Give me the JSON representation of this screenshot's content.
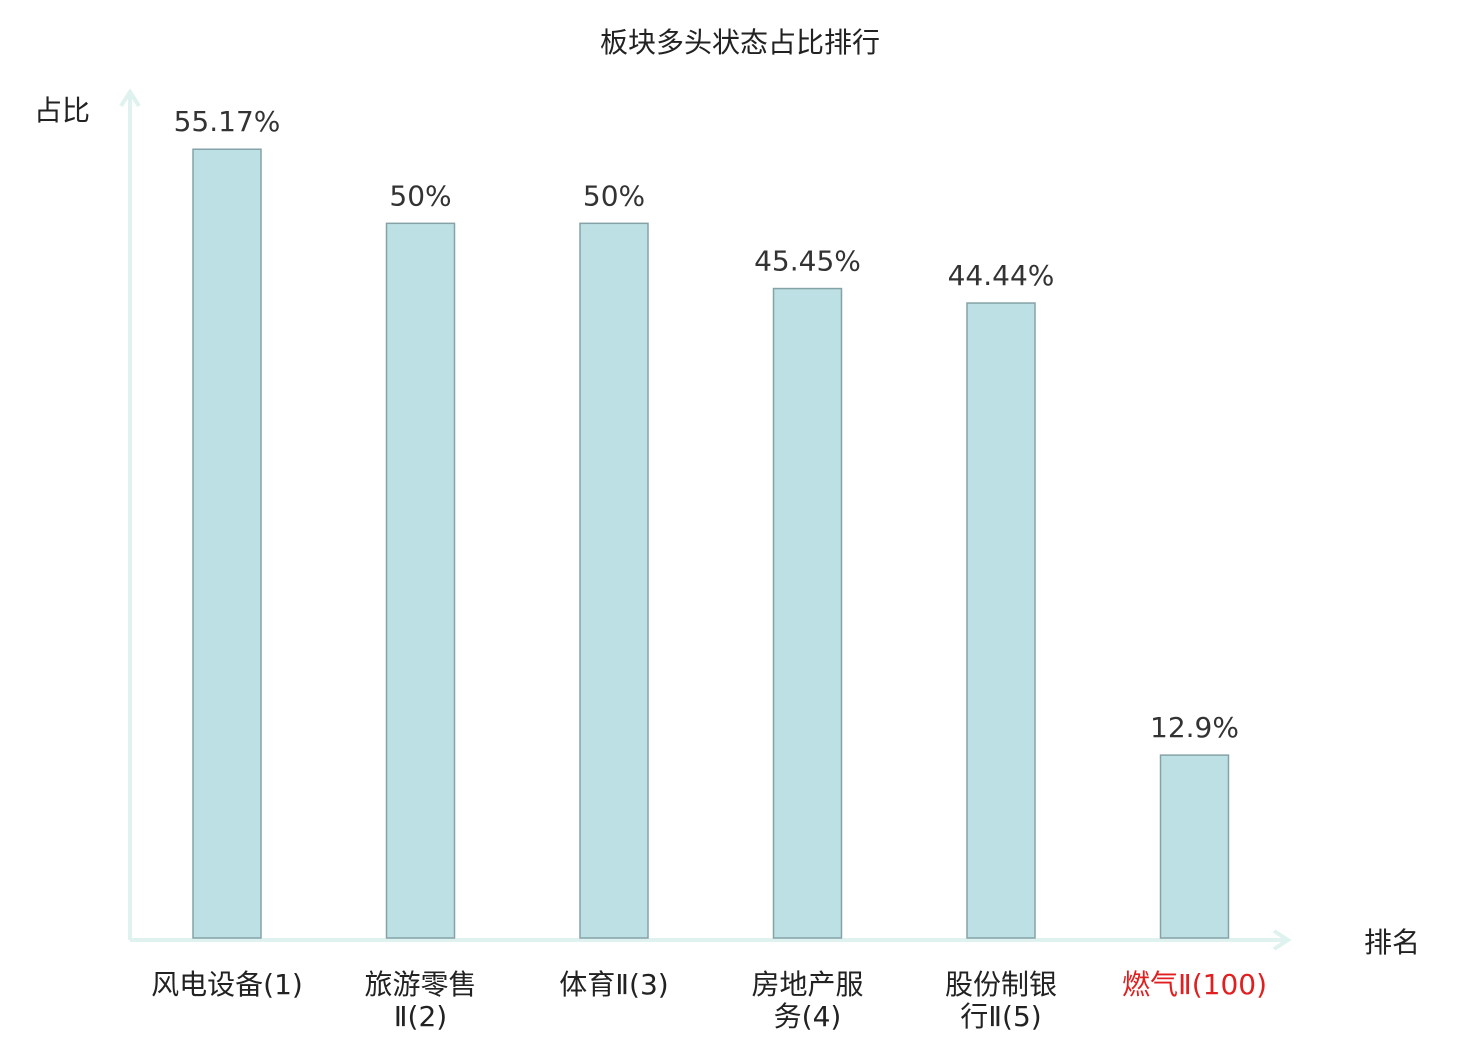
{
  "chart_data": {
    "type": "bar",
    "title": "板块多头状态占比排行",
    "xlabel": "排名",
    "ylabel": "占比",
    "ylim": [
      0,
      60
    ],
    "grid": false,
    "categories": [
      {
        "label": "风电设备(1)",
        "lines": [
          "风电设备(1)"
        ],
        "highlight": false
      },
      {
        "label": "旅游零售Ⅱ(2)",
        "lines": [
          "旅游零售",
          "Ⅱ(2)"
        ],
        "highlight": false
      },
      {
        "label": "体育Ⅱ(3)",
        "lines": [
          "体育Ⅱ(3)"
        ],
        "highlight": false
      },
      {
        "label": "房地产服务(4)",
        "lines": [
          "房地产服",
          "务(4)"
        ],
        "highlight": false
      },
      {
        "label": "股份制银行Ⅱ(5)",
        "lines": [
          "股份制银",
          "行Ⅱ(5)"
        ],
        "highlight": false
      },
      {
        "label": "燃气Ⅱ(100)",
        "lines": [
          "燃气Ⅱ(100)"
        ],
        "highlight": true
      }
    ],
    "values": [
      55.17,
      50,
      50,
      45.45,
      44.44,
      12.9
    ],
    "value_labels": [
      "55.17%",
      "50%",
      "50%",
      "45.45%",
      "44.44%",
      "12.9%"
    ]
  },
  "colors": {
    "bar_fill": "#bce0e3",
    "bar_stroke": "#85a3a7",
    "axis": "#dff2ef",
    "text": "#333333",
    "highlight_text": "#e02020"
  }
}
